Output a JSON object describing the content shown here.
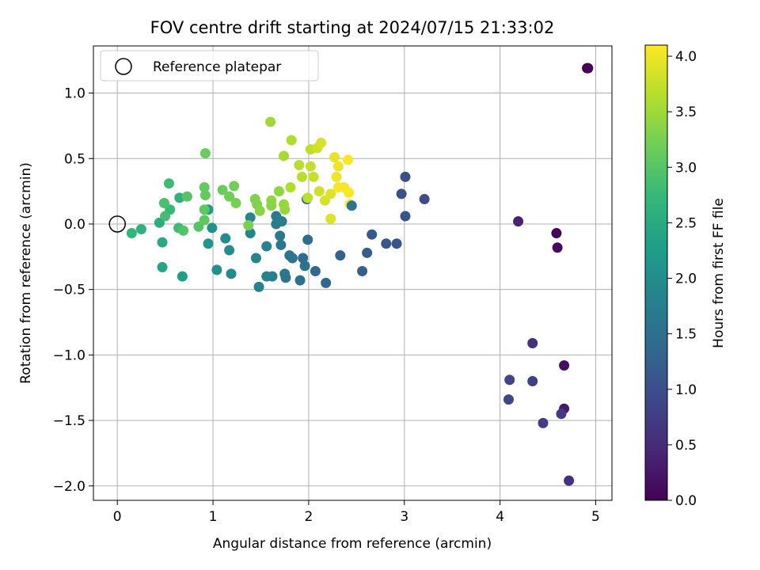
{
  "chart_data": {
    "type": "scatter",
    "title": "FOV centre drift starting at 2024/07/15 21:33:02",
    "xlabel": "Angular distance from reference (arcmin)",
    "ylabel": "Rotation from reference (arcmin)",
    "xlim": [
      -0.25,
      5.17
    ],
    "ylim": [
      -2.11,
      1.36
    ],
    "xticks": [
      0,
      1,
      2,
      3,
      4,
      5
    ],
    "yticks": [
      -2.0,
      -1.5,
      -1.0,
      -0.5,
      0.0,
      0.5,
      1.0
    ],
    "grid": true,
    "legend": {
      "placement": "top-left",
      "entries": [
        "Reference platepar"
      ]
    },
    "reference_point": {
      "x": 0,
      "y": 0
    },
    "colorbar": {
      "label": "Hours from first FF file",
      "range": [
        0.0,
        4.1
      ],
      "ticks": [
        0.0,
        0.5,
        1.0,
        1.5,
        2.0,
        2.5,
        3.0,
        3.5,
        4.0
      ],
      "colormap": "viridis"
    },
    "points": [
      {
        "x": 4.91,
        "y": 1.19,
        "c": 0.0
      },
      {
        "x": 4.92,
        "y": 1.19,
        "c": 0.02
      },
      {
        "x": 4.59,
        "y": -0.07,
        "c": 0.05
      },
      {
        "x": 4.6,
        "y": -0.18,
        "c": 0.1
      },
      {
        "x": 4.67,
        "y": -1.08,
        "c": 0.15
      },
      {
        "x": 4.67,
        "y": -1.41,
        "c": 0.3
      },
      {
        "x": 4.19,
        "y": 0.02,
        "c": 0.4
      },
      {
        "x": 4.72,
        "y": -1.96,
        "c": 0.55
      },
      {
        "x": 4.34,
        "y": -0.91,
        "c": 0.6
      },
      {
        "x": 4.64,
        "y": -1.45,
        "c": 0.7
      },
      {
        "x": 4.45,
        "y": -1.52,
        "c": 0.75
      },
      {
        "x": 4.34,
        "y": -1.2,
        "c": 0.8
      },
      {
        "x": 4.1,
        "y": -1.19,
        "c": 0.85
      },
      {
        "x": 4.09,
        "y": -1.34,
        "c": 0.9
      },
      {
        "x": 3.21,
        "y": 0.19,
        "c": 0.95
      },
      {
        "x": 3.01,
        "y": 0.36,
        "c": 1.0
      },
      {
        "x": 2.97,
        "y": 0.23,
        "c": 1.0
      },
      {
        "x": 3.01,
        "y": 0.06,
        "c": 1.05
      },
      {
        "x": 2.92,
        "y": -0.15,
        "c": 1.1
      },
      {
        "x": 2.81,
        "y": -0.15,
        "c": 1.1
      },
      {
        "x": 2.66,
        "y": -0.08,
        "c": 1.15
      },
      {
        "x": 2.61,
        "y": -0.22,
        "c": 1.2
      },
      {
        "x": 2.56,
        "y": -0.36,
        "c": 1.25
      },
      {
        "x": 2.33,
        "y": -0.24,
        "c": 1.3
      },
      {
        "x": 2.18,
        "y": -0.45,
        "c": 1.35
      },
      {
        "x": 2.07,
        "y": -0.36,
        "c": 1.4
      },
      {
        "x": 1.99,
        "y": -0.12,
        "c": 1.45
      },
      {
        "x": 1.94,
        "y": -0.26,
        "c": 1.45
      },
      {
        "x": 1.96,
        "y": -0.32,
        "c": 1.5
      },
      {
        "x": 1.91,
        "y": -0.43,
        "c": 1.5
      },
      {
        "x": 1.83,
        "y": -0.26,
        "c": 1.55
      },
      {
        "x": 1.8,
        "y": -0.24,
        "c": 1.55
      },
      {
        "x": 1.75,
        "y": -0.38,
        "c": 1.6
      },
      {
        "x": 1.76,
        "y": -0.41,
        "c": 1.6
      },
      {
        "x": 1.71,
        "y": -0.16,
        "c": 1.65
      },
      {
        "x": 1.7,
        "y": -0.09,
        "c": 1.65
      },
      {
        "x": 1.66,
        "y": 0.06,
        "c": 1.7
      },
      {
        "x": 1.66,
        "y": 0.0,
        "c": 1.7
      },
      {
        "x": 1.72,
        "y": 0.02,
        "c": 1.75
      },
      {
        "x": 1.98,
        "y": 0.19,
        "c": 1.4
      },
      {
        "x": 1.62,
        "y": -0.4,
        "c": 1.75
      },
      {
        "x": 1.56,
        "y": -0.4,
        "c": 1.8
      },
      {
        "x": 1.56,
        "y": -0.17,
        "c": 1.8
      },
      {
        "x": 1.48,
        "y": -0.48,
        "c": 1.85
      },
      {
        "x": 1.45,
        "y": -0.26,
        "c": 1.85
      },
      {
        "x": 1.39,
        "y": -0.07,
        "c": 1.9
      },
      {
        "x": 1.39,
        "y": 0.05,
        "c": 1.9
      },
      {
        "x": 1.19,
        "y": -0.38,
        "c": 1.95
      },
      {
        "x": 1.17,
        "y": -0.2,
        "c": 2.0
      },
      {
        "x": 1.13,
        "y": -0.11,
        "c": 2.0
      },
      {
        "x": 1.04,
        "y": -0.35,
        "c": 2.05
      },
      {
        "x": 0.99,
        "y": -0.03,
        "c": 2.1
      },
      {
        "x": 0.95,
        "y": -0.15,
        "c": 2.15
      },
      {
        "x": 0.95,
        "y": 0.11,
        "c": 2.2
      },
      {
        "x": 0.68,
        "y": -0.4,
        "c": 2.3
      },
      {
        "x": 0.47,
        "y": -0.33,
        "c": 2.4
      },
      {
        "x": 0.47,
        "y": -0.14,
        "c": 2.5
      },
      {
        "x": 0.44,
        "y": 0.01,
        "c": 2.55
      },
      {
        "x": 0.25,
        "y": -0.04,
        "c": 2.6
      },
      {
        "x": 0.15,
        "y": -0.07,
        "c": 2.7
      },
      {
        "x": 0.65,
        "y": 0.2,
        "c": 2.6
      },
      {
        "x": 0.64,
        "y": -0.03,
        "c": 2.8
      },
      {
        "x": 0.55,
        "y": 0.11,
        "c": 2.75
      },
      {
        "x": 0.54,
        "y": 0.31,
        "c": 2.8
      },
      {
        "x": 0.5,
        "y": 0.06,
        "c": 2.85
      },
      {
        "x": 0.49,
        "y": 0.16,
        "c": 2.9
      },
      {
        "x": 0.69,
        "y": -0.05,
        "c": 2.95
      },
      {
        "x": 0.73,
        "y": 0.21,
        "c": 3.0
      },
      {
        "x": 0.85,
        "y": -0.02,
        "c": 3.0
      },
      {
        "x": 0.91,
        "y": 0.03,
        "c": 3.05
      },
      {
        "x": 0.91,
        "y": 0.11,
        "c": 3.05
      },
      {
        "x": 0.91,
        "y": 0.28,
        "c": 3.1
      },
      {
        "x": 0.92,
        "y": 0.22,
        "c": 3.1
      },
      {
        "x": 0.92,
        "y": 0.54,
        "c": 3.15
      },
      {
        "x": 1.1,
        "y": 0.26,
        "c": 3.15
      },
      {
        "x": 1.17,
        "y": 0.21,
        "c": 3.2
      },
      {
        "x": 1.22,
        "y": 0.29,
        "c": 3.2
      },
      {
        "x": 1.24,
        "y": 0.16,
        "c": 3.25
      },
      {
        "x": 1.37,
        "y": -0.01,
        "c": 3.25
      },
      {
        "x": 1.44,
        "y": 0.19,
        "c": 3.3
      },
      {
        "x": 1.46,
        "y": 0.15,
        "c": 3.3
      },
      {
        "x": 1.49,
        "y": 0.1,
        "c": 3.35
      },
      {
        "x": 1.61,
        "y": 0.14,
        "c": 3.35
      },
      {
        "x": 1.61,
        "y": 0.18,
        "c": 3.4
      },
      {
        "x": 1.69,
        "y": 0.25,
        "c": 3.4
      },
      {
        "x": 1.74,
        "y": 0.15,
        "c": 3.45
      },
      {
        "x": 1.75,
        "y": 0.11,
        "c": 3.45
      },
      {
        "x": 1.6,
        "y": 0.78,
        "c": 3.5
      },
      {
        "x": 1.74,
        "y": 0.52,
        "c": 3.55
      },
      {
        "x": 1.82,
        "y": 0.64,
        "c": 3.6
      },
      {
        "x": 1.81,
        "y": 0.28,
        "c": 3.6
      },
      {
        "x": 1.9,
        "y": 0.45,
        "c": 3.65
      },
      {
        "x": 1.93,
        "y": 0.36,
        "c": 3.65
      },
      {
        "x": 1.99,
        "y": 0.2,
        "c": 3.7
      },
      {
        "x": 2.02,
        "y": 0.57,
        "c": 3.7
      },
      {
        "x": 2.02,
        "y": 0.44,
        "c": 3.75
      },
      {
        "x": 2.05,
        "y": 0.36,
        "c": 3.75
      },
      {
        "x": 2.09,
        "y": 0.58,
        "c": 3.8
      },
      {
        "x": 2.11,
        "y": 0.25,
        "c": 3.8
      },
      {
        "x": 2.13,
        "y": 0.62,
        "c": 3.85
      },
      {
        "x": 2.17,
        "y": 0.18,
        "c": 3.85
      },
      {
        "x": 2.23,
        "y": 0.23,
        "c": 3.9
      },
      {
        "x": 2.23,
        "y": 0.04,
        "c": 3.9
      },
      {
        "x": 2.27,
        "y": 0.51,
        "c": 3.95
      },
      {
        "x": 2.29,
        "y": 0.36,
        "c": 4.0
      },
      {
        "x": 2.31,
        "y": 0.44,
        "c": 4.0
      },
      {
        "x": 2.31,
        "y": 0.28,
        "c": 4.05
      },
      {
        "x": 2.37,
        "y": 0.28,
        "c": 4.05
      },
      {
        "x": 2.41,
        "y": 0.49,
        "c": 4.1
      },
      {
        "x": 2.42,
        "y": 0.24,
        "c": 4.1
      },
      {
        "x": 2.43,
        "y": 0.15,
        "c": 4.1
      },
      {
        "x": 2.45,
        "y": 0.14,
        "c": 1.6
      }
    ]
  }
}
